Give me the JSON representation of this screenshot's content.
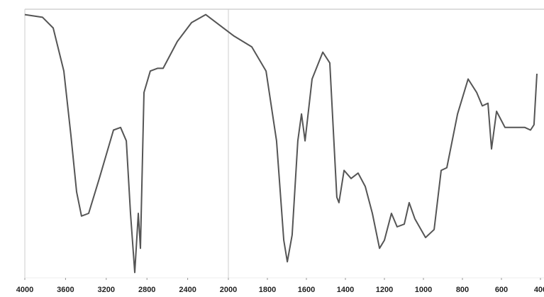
{
  "chart_data": {
    "type": "line",
    "x": [
      4000,
      3826,
      3721,
      3617,
      3547,
      3491,
      3443,
      3373,
      3268,
      3129,
      3059,
      3003,
      2962,
      2920,
      2885,
      2864,
      2829,
      2767,
      2697,
      2641,
      2502,
      2362,
      2223,
      2084,
      1971,
      1880,
      1807,
      1753,
      1716,
      1698,
      1673,
      1644,
      1625,
      1607,
      1571,
      1516,
      1480,
      1444,
      1433,
      1407,
      1371,
      1335,
      1298,
      1262,
      1225,
      1200,
      1164,
      1135,
      1098,
      1073,
      1044,
      989,
      945,
      909,
      880,
      825,
      771,
      727,
      698,
      669,
      651,
      625,
      582,
      535,
      480,
      451,
      433,
      418
    ],
    "values": [
      98,
      97,
      93,
      77,
      53,
      32,
      23,
      24,
      37,
      55,
      56,
      51,
      24,
      2,
      24,
      11,
      69,
      77,
      78,
      78,
      88,
      95,
      98,
      94,
      90,
      86,
      77,
      51,
      14,
      6,
      16,
      51,
      61,
      51,
      74,
      84,
      80,
      30,
      28,
      40,
      37,
      39,
      34,
      24,
      11,
      14,
      24,
      19,
      20,
      28,
      22,
      15,
      18,
      40,
      41,
      61,
      74,
      69,
      64,
      65,
      48,
      62,
      56,
      56,
      56,
      55,
      57,
      76
    ],
    "color": "#555555",
    "xlim": [
      4000,
      400
    ],
    "xticks": [
      4000,
      3600,
      3200,
      2800,
      2400,
      2000,
      1800,
      1600,
      1400,
      1200,
      1000,
      800,
      600,
      400
    ],
    "xscale_break": 2000,
    "ylim": [
      0,
      100
    ]
  }
}
